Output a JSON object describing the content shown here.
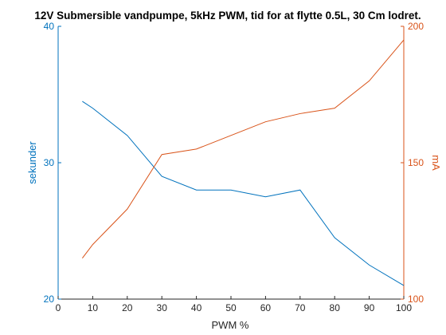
{
  "chart_data": {
    "type": "line",
    "title": "12V Submersible vandpumpe, 5kHz PWM, tid for at flytte 0.5L, 30 Cm lodret.",
    "xlabel": "PWM %",
    "ylabel_left": "sekunder",
    "ylabel_right": "mA",
    "xlim": [
      0,
      100
    ],
    "ylim_left": [
      20,
      40
    ],
    "ylim_right": [
      100,
      200
    ],
    "xticks": [
      0,
      10,
      20,
      30,
      40,
      50,
      60,
      70,
      80,
      90,
      100
    ],
    "yticks_left": [
      20,
      30,
      40
    ],
    "yticks_right": [
      100,
      150,
      200
    ],
    "grid": false,
    "colors": {
      "left": "#0072BD",
      "right": "#D95319",
      "axis": "#262626"
    },
    "series": [
      {
        "axis": "left",
        "x": [
          7,
          10,
          20,
          30,
          40,
          50,
          60,
          70,
          80,
          90,
          100
        ],
        "values": [
          34.5,
          34,
          32,
          29,
          28,
          28,
          27.5,
          28,
          24.5,
          22.5,
          21
        ]
      },
      {
        "axis": "right",
        "x": [
          7,
          10,
          20,
          30,
          40,
          50,
          60,
          70,
          80,
          90,
          100
        ],
        "values": [
          115,
          120,
          133,
          153,
          155,
          160,
          165,
          168,
          170,
          180,
          195
        ]
      }
    ]
  }
}
